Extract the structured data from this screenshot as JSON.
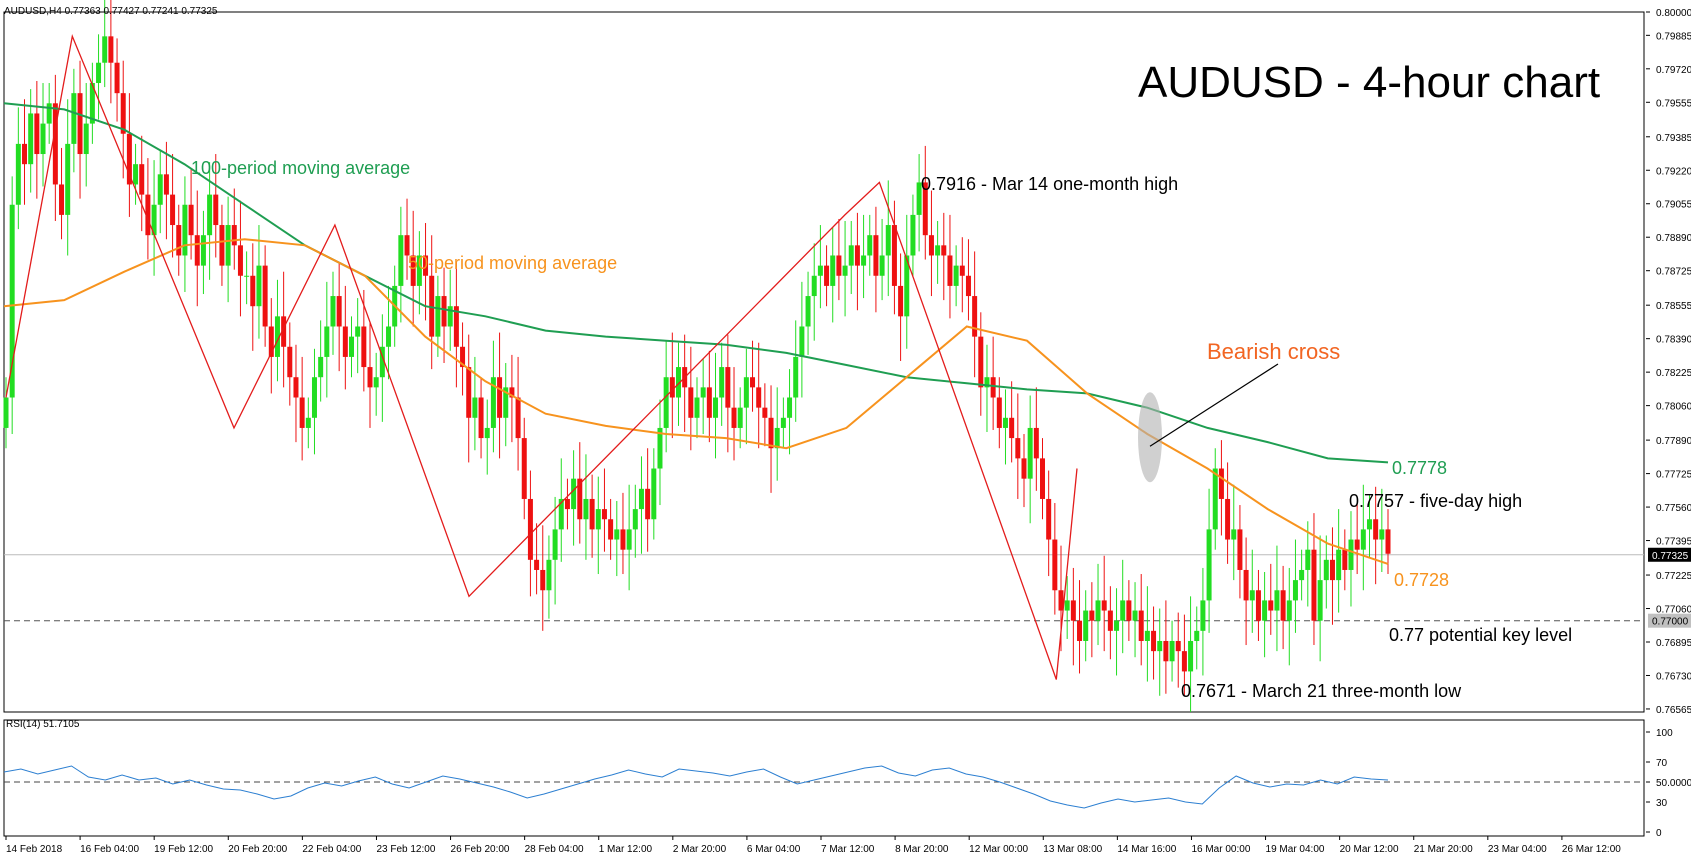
{
  "chart_data": {
    "type": "candlestick",
    "header": "AUDUSD,H4  0.77363 0.77427 0.77241 0.77325",
    "title": "AUDUSD - 4-hour chart",
    "price_axis": {
      "range": [
        0.7655,
        0.8
      ],
      "ticks": [
        "0.80000",
        "0.79885",
        "0.79720",
        "0.79555",
        "0.79385",
        "0.79220",
        "0.79055",
        "0.78890",
        "0.78725",
        "0.78555",
        "0.78390",
        "0.78225",
        "0.78060",
        "0.77890",
        "0.77725",
        "0.77560",
        "0.77395",
        "0.77225",
        "0.77060",
        "0.76895",
        "0.76730",
        "0.76565"
      ],
      "current_price_label": "0.77325",
      "key_level_label": "0.77000"
    },
    "time_axis": {
      "labels": [
        "14 Feb 2018",
        "16 Feb 04:00",
        "19 Feb 12:00",
        "20 Feb 20:00",
        "22 Feb 04:00",
        "23 Feb 12:00",
        "26 Feb 20:00",
        "28 Feb 04:00",
        "1 Mar 12:00",
        "2 Mar 20:00",
        "6 Mar 04:00",
        "7 Mar 12:00",
        "8 Mar 20:00",
        "12 Mar 00:00",
        "13 Mar 08:00",
        "14 Mar 16:00",
        "16 Mar 00:00",
        "19 Mar 04:00",
        "20 Mar 12:00",
        "21 Mar 20:00",
        "23 Mar 04:00",
        "26 Mar 12:00"
      ]
    },
    "price_series_close": [
      0.781,
      0.7905,
      0.7935,
      0.7925,
      0.795,
      0.793,
      0.7945,
      0.7955,
      0.7915,
      0.79,
      0.7935,
      0.796,
      0.793,
      0.7945,
      0.7965,
      0.7975,
      0.7988,
      0.7975,
      0.796,
      0.794,
      0.7915,
      0.7925,
      0.791,
      0.789,
      0.7905,
      0.792,
      0.791,
      0.7895,
      0.788,
      0.7905,
      0.789,
      0.7875,
      0.789,
      0.791,
      0.7895,
      0.7875,
      0.7895,
      0.7885,
      0.787,
      0.787,
      0.7855,
      0.7875,
      0.7845,
      0.783,
      0.785,
      0.7835,
      0.782,
      0.781,
      0.7795,
      0.78,
      0.782,
      0.783,
      0.7845,
      0.786,
      0.7845,
      0.783,
      0.784,
      0.7845,
      0.7825,
      0.7815,
      0.782,
      0.7835,
      0.7845,
      0.7865,
      0.789,
      0.788,
      0.7865,
      0.788,
      0.787,
      0.784,
      0.786,
      0.7845,
      0.7855,
      0.7835,
      0.7825,
      0.78,
      0.781,
      0.779,
      0.7795,
      0.782,
      0.78,
      0.7815,
      0.781,
      0.779,
      0.776,
      0.773,
      0.7725,
      0.7715,
      0.773,
      0.7745,
      0.776,
      0.7755,
      0.777,
      0.775,
      0.776,
      0.7745,
      0.7755,
      0.775,
      0.774,
      0.7745,
      0.7735,
      0.7745,
      0.7755,
      0.7765,
      0.775,
      0.7775,
      0.7795,
      0.782,
      0.781,
      0.7825,
      0.7815,
      0.78,
      0.781,
      0.7815,
      0.78,
      0.781,
      0.7825,
      0.7805,
      0.7795,
      0.7805,
      0.782,
      0.7815,
      0.7805,
      0.78,
      0.7785,
      0.7795,
      0.78,
      0.781,
      0.783,
      0.7845,
      0.786,
      0.787,
      0.7875,
      0.7865,
      0.788,
      0.787,
      0.7875,
      0.7885,
      0.7875,
      0.788,
      0.789,
      0.787,
      0.788,
      0.7895,
      0.7865,
      0.785,
      0.788,
      0.79,
      0.7916,
      0.789,
      0.788,
      0.7885,
      0.788,
      0.7865,
      0.7875,
      0.787,
      0.786,
      0.784,
      0.7815,
      0.782,
      0.781,
      0.7795,
      0.78,
      0.779,
      0.778,
      0.777,
      0.7795,
      0.778,
      0.776,
      0.774,
      0.7715,
      0.7705,
      0.771,
      0.77,
      0.769,
      0.7705,
      0.77,
      0.771,
      0.7705,
      0.7695,
      0.77,
      0.771,
      0.77,
      0.7705,
      0.769,
      0.7695,
      0.7685,
      0.769,
      0.768,
      0.769,
      0.7685,
      0.7675,
      0.769,
      0.7695,
      0.771,
      0.7745,
      0.7775,
      0.776,
      0.774,
      0.7745,
      0.7725,
      0.771,
      0.7715,
      0.77,
      0.771,
      0.7705,
      0.7715,
      0.77,
      0.771,
      0.772,
      0.7725,
      0.7735,
      0.77,
      0.772,
      0.773,
      0.772,
      0.7735,
      0.7725,
      0.774,
      0.7735,
      0.7745,
      0.775,
      0.774,
      0.7745,
      0.7733
    ],
    "series": [
      {
        "name": "100-period moving average",
        "color": "#1f9e52",
        "values": [
          0.7955,
          0.7952,
          0.7942,
          0.7925,
          0.7905,
          0.7885,
          0.787,
          0.7855,
          0.785,
          0.7843,
          0.784,
          0.7838,
          0.7836,
          0.7832,
          0.7826,
          0.782,
          0.7817,
          0.7814,
          0.7812,
          0.7805,
          0.7795,
          0.7788,
          0.778,
          0.7778
        ]
      },
      {
        "name": "50-period moving average",
        "color": "#f7931e",
        "values": [
          0.7855,
          0.7858,
          0.7872,
          0.7885,
          0.7888,
          0.7885,
          0.787,
          0.784,
          0.7818,
          0.7802,
          0.7796,
          0.7792,
          0.779,
          0.7785,
          0.7795,
          0.782,
          0.7845,
          0.7838,
          0.7812,
          0.7792,
          0.7775,
          0.7755,
          0.7738,
          0.7728
        ]
      }
    ],
    "rsi": {
      "label": "RSI(14) 51.7105",
      "ticks": [
        "100",
        "70",
        "50.0000",
        "30",
        "0"
      ],
      "color": "#2c7fd1",
      "values": [
        60,
        63,
        58,
        62,
        66,
        55,
        52,
        57,
        52,
        54,
        48,
        52,
        47,
        43,
        42,
        38,
        33,
        36,
        44,
        49,
        46,
        51,
        55,
        48,
        44,
        50,
        56,
        53,
        49,
        45,
        40,
        34,
        38,
        43,
        48,
        53,
        57,
        62,
        58,
        55,
        63,
        61,
        59,
        56,
        60,
        63,
        55,
        48,
        52,
        56,
        60,
        64,
        66,
        59,
        56,
        62,
        64,
        58,
        55,
        50,
        44,
        38,
        31,
        27,
        24,
        29,
        33,
        30,
        32,
        34,
        30,
        28,
        44,
        56,
        49,
        45,
        48,
        47,
        52,
        48,
        55,
        53,
        52
      ]
    },
    "trend_lines_color": "#e31c1c",
    "annotations": {
      "ma100_label": "100-period moving average",
      "ma50_label": "50-period moving average",
      "high_label": "0.7916 - Mar 14 one-month high",
      "bearish_cross": "Bearish cross",
      "ma100_value": "0.7778",
      "five_day_high": "0.7757 - five-day high",
      "ma50_value": "0.7728",
      "key_level_text": "0.77 potential key level",
      "low_label": "0.7671 - March 21 three-month low"
    },
    "colors": {
      "bull": "#22dd22",
      "bear": "#ee1111",
      "ma100": "#1f9e52",
      "ma50": "#f7931e",
      "trend": "#e31c1c",
      "rsi": "#2c7fd1",
      "bearish_cross_text": "#f26522"
    },
    "grid": "off"
  }
}
